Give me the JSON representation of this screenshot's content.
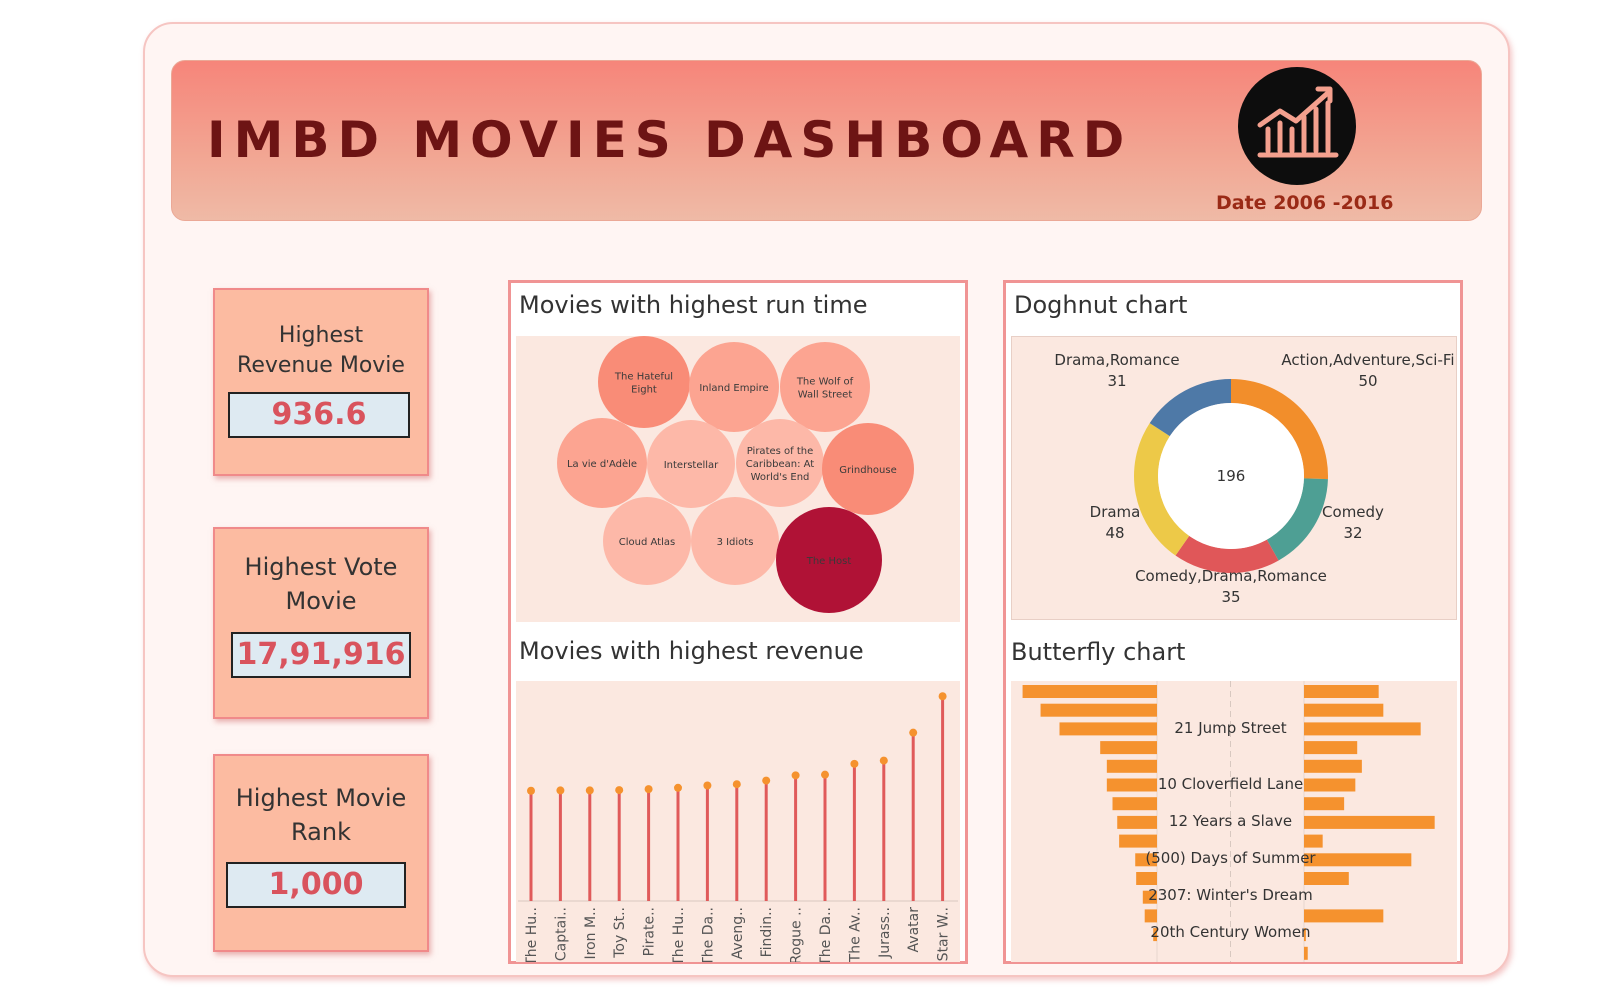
{
  "header": {
    "title": "IMBD MOVIES DASHBOARD",
    "date_label": "Date",
    "date_range": "2006 -2016",
    "logo_icon": "growth-chart-icon"
  },
  "kpis": [
    {
      "label_line1": "Highest",
      "label_line2": "Revenue Movie",
      "value": "936.6"
    },
    {
      "label_line1": "Highest Vote",
      "label_line2": "Movie",
      "value": "17,91,916"
    },
    {
      "label_line1": "Highest Movie",
      "label_line2": "Rank",
      "value": "1,000"
    }
  ],
  "colors": {
    "accent": "#f6857a",
    "kpi_value": "#d9535d",
    "bar": "#f5922e",
    "stem": "#e05a5a",
    "highlight": "#b01236"
  },
  "chart_data": [
    {
      "type": "bubble",
      "title": "Movies with highest run time",
      "items": [
        {
          "label": "The Hateful Eight",
          "lines": [
            "The Hateful",
            "Eight"
          ],
          "color": "#f98c77"
        },
        {
          "label": "Inland Empire",
          "lines": [
            "Inland Empire"
          ],
          "color": "#fca491"
        },
        {
          "label": "The Wolf of Wall Street",
          "lines": [
            "The Wolf of",
            "Wall Street"
          ],
          "color": "#fca491"
        },
        {
          "label": "La vie d'Adèle",
          "lines": [
            "La vie d'Adèle"
          ],
          "color": "#fca491"
        },
        {
          "label": "Interstellar",
          "lines": [
            "Interstellar"
          ],
          "color": "#fdb8a8"
        },
        {
          "label": "Pirates of the Caribbean: At World's End",
          "lines": [
            "Pirates of the",
            "Caribbean: At",
            "World's End"
          ],
          "color": "#fdb8a8"
        },
        {
          "label": "Grindhouse",
          "lines": [
            "Grindhouse"
          ],
          "color": "#f98c77"
        },
        {
          "label": "Cloud Atlas",
          "lines": [
            "Cloud Atlas"
          ],
          "color": "#fdb8a8"
        },
        {
          "label": "3 Idiots",
          "lines": [
            "3 Idiots"
          ],
          "color": "#fdb8a8"
        },
        {
          "label": "The Host",
          "lines": [
            "The Host"
          ],
          "color": "#b01236",
          "label_color": "#ffffff"
        }
      ]
    },
    {
      "type": "pie",
      "title": "Doghnut chart",
      "total": "196",
      "slices": [
        {
          "name": "Action,Adventure,Sci-Fi",
          "value": 50,
          "color": "#f28e2b"
        },
        {
          "name": "Comedy",
          "value": 32,
          "color": "#4e9f94"
        },
        {
          "name": "Comedy,Drama,Romance",
          "value": 35,
          "color": "#e05759"
        },
        {
          "name": "Drama",
          "value": 48,
          "color": "#edc948"
        },
        {
          "name": "Drama,Romance",
          "value": 31,
          "color": "#4e79a7"
        }
      ]
    },
    {
      "type": "lollipop",
      "title": "Movies with highest revenue",
      "categories": [
        "The Hu..",
        "Captai..",
        "Iron M..",
        "Toy St..",
        "Pirate..",
        "The Hu..",
        "The Da..",
        "Aveng..",
        "Findin..",
        "Rogue ..",
        "The Da..",
        "The Av..",
        "Jurass..",
        "Avatar",
        "Star W.."
      ],
      "values": [
        336,
        337,
        337,
        338,
        341,
        345,
        352,
        356,
        367,
        383,
        385,
        418,
        428,
        513,
        624
      ],
      "ylim": [
        0,
        640
      ]
    },
    {
      "type": "butterfly",
      "title": "Butterfly chart",
      "row_labels": [
        "21 Jump Street",
        "10 Cloverfield Lane",
        "12 Years a Slave",
        "(500) Days of Summer",
        "2307: Winter's Dream",
        "20th Century Women"
      ],
      "left_values": [
        142,
        123,
        103,
        60,
        53,
        53,
        47,
        42,
        40,
        23,
        22,
        15,
        13,
        4
      ],
      "right_values": [
        80,
        85,
        125,
        57,
        62,
        55,
        43,
        140,
        20,
        115,
        48,
        0,
        85,
        2,
        4
      ]
    }
  ]
}
